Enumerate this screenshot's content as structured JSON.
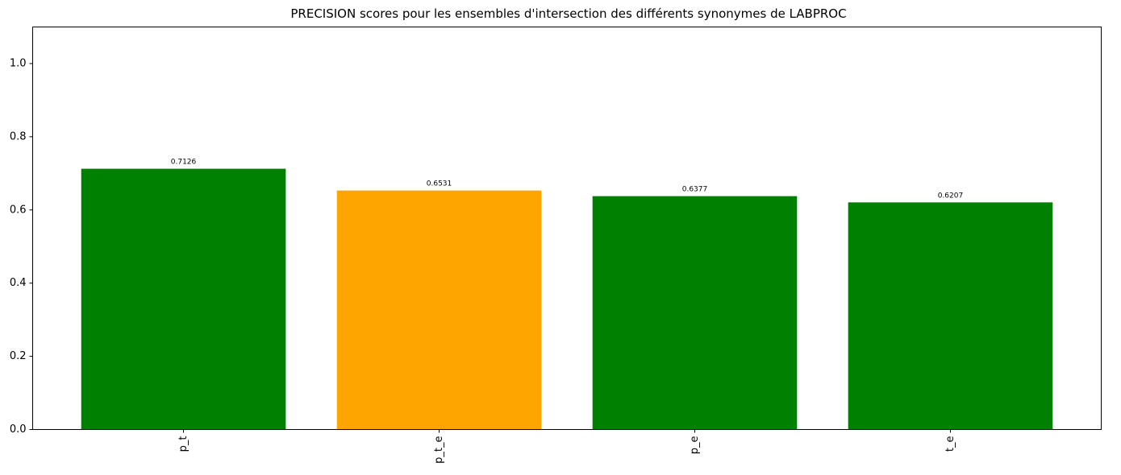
{
  "chart_data": {
    "type": "bar",
    "title": "PRECISION scores pour les ensembles d'intersection des différents synonymes de LABPROC",
    "xlabel": "",
    "ylabel": "",
    "categories": [
      "p_t",
      "p_t_e",
      "p_e",
      "t_e"
    ],
    "values": [
      0.7126,
      0.6531,
      0.6377,
      0.6207
    ],
    "data_labels": [
      "0.7126",
      "0.6531",
      "0.6377",
      "0.6207"
    ],
    "bar_colors": [
      "#008000",
      "#ffa500",
      "#008000",
      "#008000"
    ],
    "ylim": [
      0,
      1.1
    ],
    "yticks": [
      0.0,
      0.2,
      0.4,
      0.6,
      0.8,
      1.0
    ],
    "ytick_labels": [
      "0.0",
      "0.2",
      "0.4",
      "0.6",
      "0.8",
      "1.0"
    ],
    "xtick_rotation": "vertical",
    "grid": false,
    "legend": "none"
  }
}
